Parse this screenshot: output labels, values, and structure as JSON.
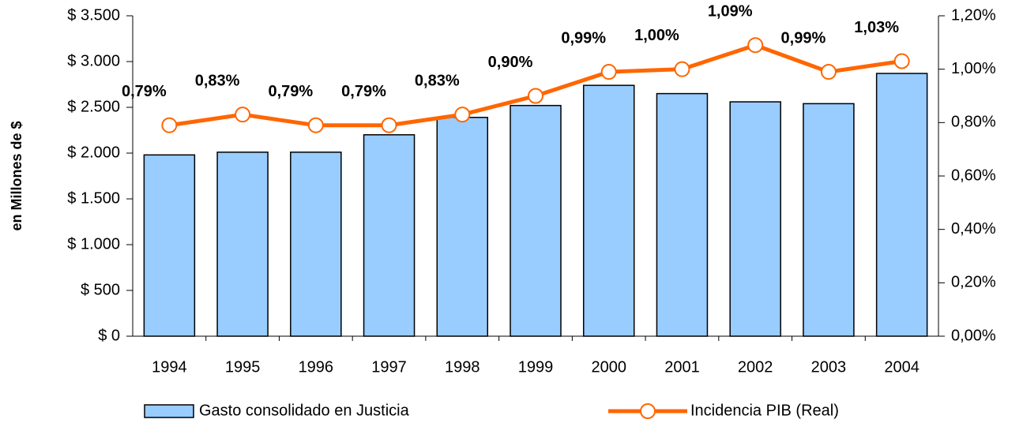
{
  "chart_data": {
    "type": "bar_line",
    "categories": [
      "1994",
      "1995",
      "1996",
      "1997",
      "1998",
      "1999",
      "2000",
      "2001",
      "2002",
      "2003",
      "2004"
    ],
    "ylabel": "en Millones de $",
    "ylim": [
      0,
      3500
    ],
    "yticks": [
      {
        "value": 0,
        "label": "$ 0"
      },
      {
        "value": 500,
        "label": "$ 500"
      },
      {
        "value": 1000,
        "label": "$ 1.000"
      },
      {
        "value": 1500,
        "label": "$ 1.500"
      },
      {
        "value": 2000,
        "label": "$ 2.000"
      },
      {
        "value": 2500,
        "label": "$ 2.500"
      },
      {
        "value": 3000,
        "label": "$ 3.000"
      },
      {
        "value": 3500,
        "label": "$ 3.500"
      }
    ],
    "y2lim": [
      0,
      1.2
    ],
    "y2ticks": [
      {
        "value": 0,
        "label": "0,00%"
      },
      {
        "value": 0.2,
        "label": "0,20%"
      },
      {
        "value": 0.4,
        "label": "0,40%"
      },
      {
        "value": 0.6,
        "label": "0,60%"
      },
      {
        "value": 0.8,
        "label": "0,80%"
      },
      {
        "value": 1.0,
        "label": "1,00%"
      },
      {
        "value": 1.2,
        "label": "1,20%"
      }
    ],
    "series": [
      {
        "name": "Gasto consolidado en Justicia",
        "type": "bar",
        "color": "#99ccff",
        "values": [
          1980,
          2010,
          2010,
          2200,
          2390,
          2520,
          2740,
          2650,
          2560,
          2540,
          2870
        ]
      },
      {
        "name": "Incidencia PIB (Real)",
        "type": "line",
        "axis": "y2",
        "color": "#ff6600",
        "values": [
          0.79,
          0.83,
          0.79,
          0.79,
          0.83,
          0.9,
          0.99,
          1.0,
          1.09,
          0.99,
          1.03
        ],
        "value_labels": [
          "0,79%",
          "0,83%",
          "0,79%",
          "0,79%",
          "0,83%",
          "0,90%",
          "0,99%",
          "1,00%",
          "1,09%",
          "0,99%",
          "1,03%"
        ]
      }
    ]
  }
}
